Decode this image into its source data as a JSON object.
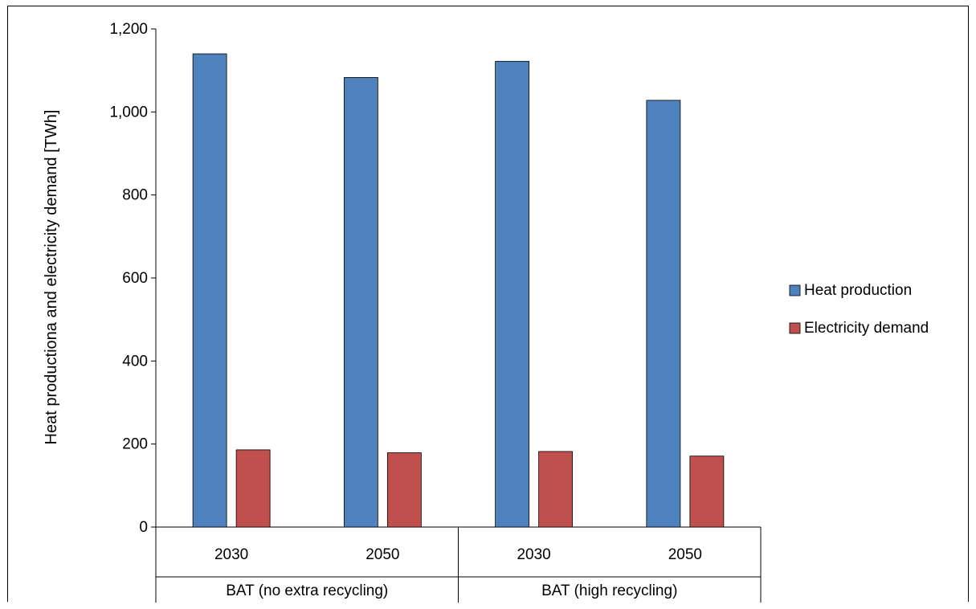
{
  "chart_data": {
    "type": "bar",
    "title": "",
    "xlabel": "",
    "ylabel": "Heat productiona and electricity demand [TWh]",
    "ylim": [
      0,
      1200
    ],
    "yticks": [
      "0",
      "200",
      "400",
      "600",
      "800",
      "1,000",
      "1,200"
    ],
    "ytick_values": [
      0,
      200,
      400,
      600,
      800,
      1000,
      1200
    ],
    "categories": [
      "2030",
      "2050",
      "2030",
      "2050"
    ],
    "groups": [
      {
        "label": "BAT (no extra recycling)",
        "categories": [
          "2030",
          "2050"
        ]
      },
      {
        "label": "BAT (high recycling)",
        "categories": [
          "2030",
          "2050"
        ]
      }
    ],
    "series": [
      {
        "name": "Heat production",
        "color": "#4f81bd",
        "values": [
          1140,
          1083,
          1122,
          1028
        ]
      },
      {
        "name": "Electricity demand",
        "color": "#c0504d",
        "values": [
          186,
          179,
          182,
          171
        ]
      }
    ],
    "grid": false,
    "legend_position": "right"
  }
}
